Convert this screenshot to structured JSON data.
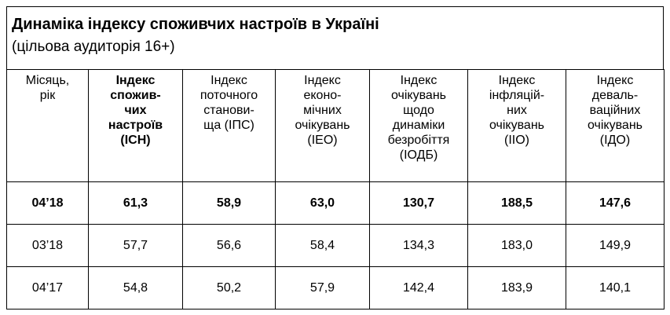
{
  "header": {
    "title": "Динаміка індексу споживчих настроїв в Україні",
    "subtitle": "(цільова аудиторія 16+)"
  },
  "table": {
    "columns": [
      "Місяць,\nрік",
      "Індекс\nспожив-\nчих\nнастроїв\n(ІСН)",
      "Індекс\nпоточного\nстанови-\nща (ІПС)",
      "Індекс\nеконо-\nмічних\nочікувань\n(ІЕО)",
      "Індекс\nочікувань\nщодо\nдинаміки\nбезробіття\n(ІОДБ)",
      "Індекс\nінфляцій-\nних\nочікувань\n(ІІО)",
      "Індекс\nдеваль-\nваційних\nочікувань\n(ІДО)"
    ],
    "rows": [
      [
        "04’18",
        "61,3",
        "58,9",
        "63,0",
        "130,7",
        "188,5",
        "147,6"
      ],
      [
        "03’18",
        "57,7",
        "56,6",
        "58,4",
        "134,3",
        "183,0",
        "149,9"
      ],
      [
        "04’17",
        "54,8",
        "50,2",
        "57,9",
        "142,4",
        "183,9",
        "140,1"
      ]
    ]
  }
}
